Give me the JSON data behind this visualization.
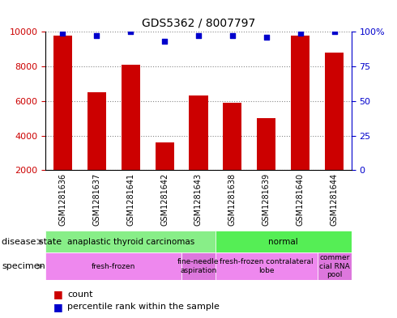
{
  "title": "GDS5362 / 8007797",
  "samples": [
    "GSM1281636",
    "GSM1281637",
    "GSM1281641",
    "GSM1281642",
    "GSM1281643",
    "GSM1281638",
    "GSM1281639",
    "GSM1281640",
    "GSM1281644"
  ],
  "counts": [
    9800,
    6500,
    8100,
    3600,
    6300,
    5900,
    5000,
    9800,
    8800
  ],
  "percentile_ranks": [
    99,
    97,
    100,
    93,
    97,
    97,
    96,
    99,
    100
  ],
  "ylim_left": [
    2000,
    10000
  ],
  "ylim_right": [
    0,
    100
  ],
  "yticks_left": [
    2000,
    4000,
    6000,
    8000,
    10000
  ],
  "yticks_right": [
    0,
    25,
    50,
    75,
    100
  ],
  "bar_color": "#cc0000",
  "dot_color": "#0000cc",
  "disease_state_groups": [
    {
      "label": "anaplastic thyroid carcinomas",
      "start": 0,
      "end": 5,
      "color": "#88ee88"
    },
    {
      "label": "normal",
      "start": 5,
      "end": 9,
      "color": "#55ee55"
    }
  ],
  "specimen_groups": [
    {
      "label": "fresh-frozen",
      "start": 0,
      "end": 4,
      "color": "#ee88ee"
    },
    {
      "label": "fine-needle\naspiration",
      "start": 4,
      "end": 5,
      "color": "#dd77dd"
    },
    {
      "label": "fresh-frozen contralateral\nlobe",
      "start": 5,
      "end": 8,
      "color": "#ee88ee"
    },
    {
      "label": "commer\ncial RNA\npool",
      "start": 8,
      "end": 9,
      "color": "#dd77dd"
    }
  ],
  "xtick_bg_color": "#cccccc",
  "grid_color": "#888888",
  "axis_color_left": "#cc0000",
  "axis_color_right": "#0000cc",
  "bar_width": 0.55,
  "legend_count_color": "#cc0000",
  "legend_dot_color": "#0000cc"
}
